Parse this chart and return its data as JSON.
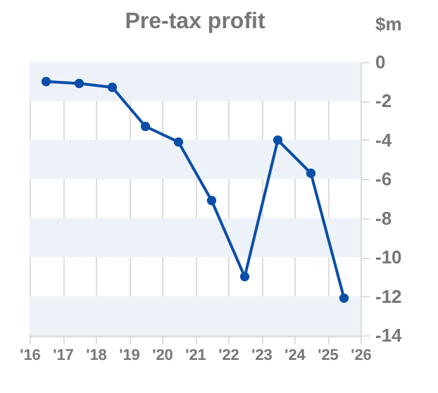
{
  "chart_data": {
    "type": "line",
    "title": "Pre-tax profit",
    "ylabel": "$m",
    "x": [
      2016.5,
      2017.5,
      2018.5,
      2019.5,
      2020.5,
      2021.5,
      2022.5,
      2023.5,
      2024.5,
      2025.5
    ],
    "series": [
      {
        "color": "#0a4ea8",
        "values": [
          -1.0,
          -1.1,
          -1.3,
          -3.3,
          -4.1,
          -7.1,
          -11.0,
          -4.0,
          -5.7,
          -12.1
        ]
      }
    ],
    "xlim": [
      2016,
      2026
    ],
    "xticks": [
      {
        "value": 2016,
        "label": "'16"
      },
      {
        "value": 2017,
        "label": "'17"
      },
      {
        "value": 2018,
        "label": "'18"
      },
      {
        "value": 2019,
        "label": "'19"
      },
      {
        "value": 2020,
        "label": "'20"
      },
      {
        "value": 2021,
        "label": "'21"
      },
      {
        "value": 2022,
        "label": "'22"
      },
      {
        "value": 2023,
        "label": "'23"
      },
      {
        "value": 2024,
        "label": "'24"
      },
      {
        "value": 2025,
        "label": "'25"
      },
      {
        "value": 2026,
        "label": "'26"
      }
    ],
    "ylim": [
      -14,
      0
    ],
    "yticks": [
      0,
      -2,
      -4,
      -6,
      -8,
      -10,
      -12,
      -14
    ],
    "bands": [
      {
        "axis": "y",
        "from": 0,
        "to": -2,
        "color": "#edf2f9"
      },
      {
        "axis": "y",
        "from": -4,
        "to": -6,
        "color": "#edf2f9"
      },
      {
        "axis": "y",
        "from": -8,
        "to": -10,
        "color": "#edf2f9"
      },
      {
        "axis": "y",
        "from": -12,
        "to": -14,
        "color": "#edf2f9"
      }
    ],
    "grid": "x",
    "marker": "circle",
    "line_style": "solid"
  }
}
